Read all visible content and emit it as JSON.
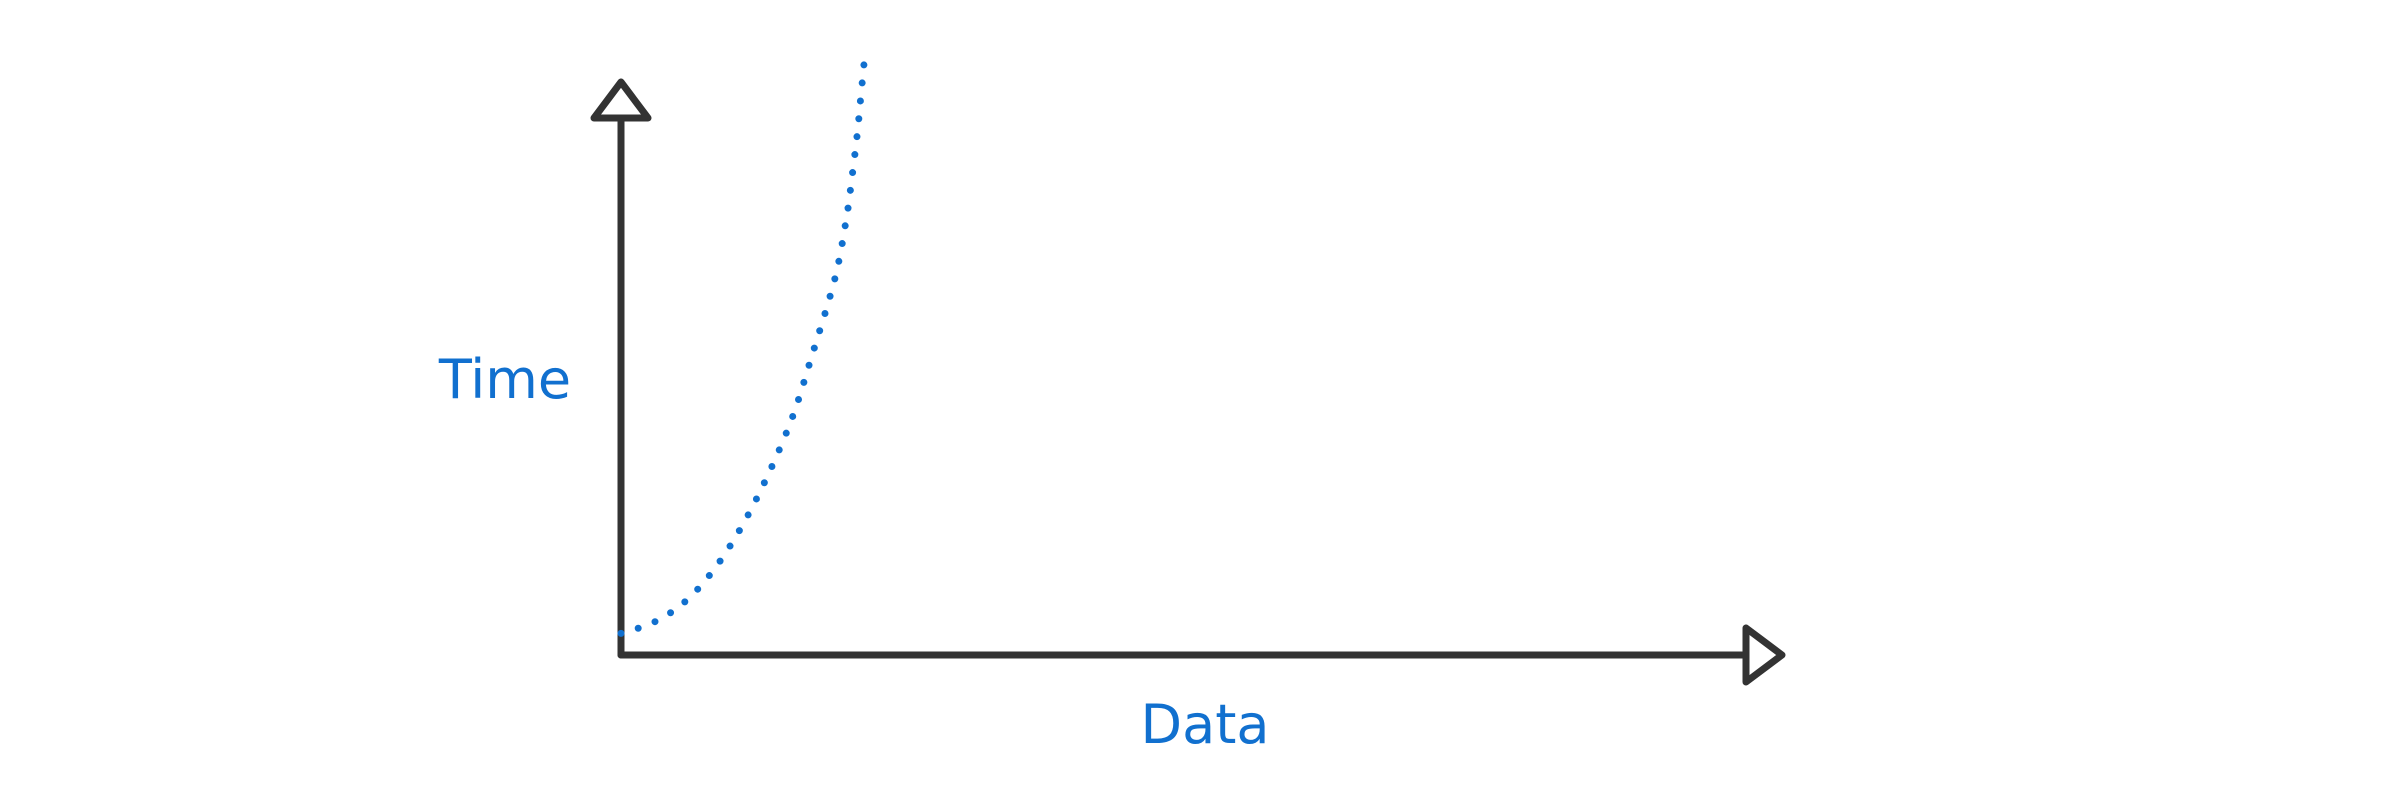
{
  "chart_data": {
    "type": "line",
    "title": "",
    "xlabel": "Data",
    "ylabel": "Time",
    "xlim": [
      0,
      1
    ],
    "ylim": [
      0,
      1
    ],
    "grid": false,
    "legend": "none",
    "series": [
      {
        "style": "dotted",
        "x": [
          0.0,
          0.03,
          0.06,
          0.09,
          0.12,
          0.15,
          0.17,
          0.19,
          0.2,
          0.205,
          0.21,
          0.213,
          0.216
        ],
        "y": [
          0.02,
          0.04,
          0.08,
          0.15,
          0.25,
          0.38,
          0.5,
          0.63,
          0.73,
          0.8,
          0.88,
          0.94,
          1.0
        ]
      }
    ]
  },
  "colors": {
    "axis": "#333333",
    "series": "#1170cf",
    "label": "#1170cf"
  }
}
